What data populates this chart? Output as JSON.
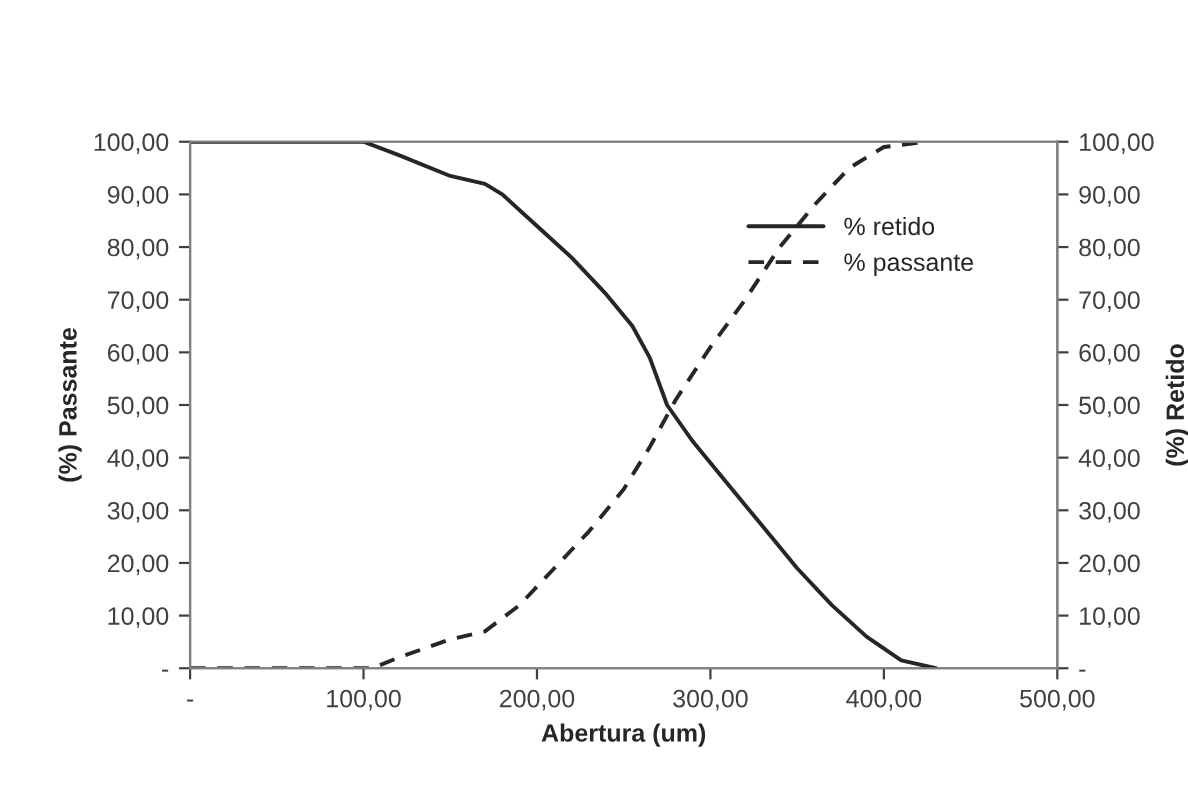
{
  "chart_data": {
    "type": "line",
    "xlabel": "Abertura (um)",
    "ylabel": "(%) Passante",
    "y2label": "(%) Retido",
    "xlim": [
      0,
      500
    ],
    "xticks": [
      {
        "value": 0,
        "label": "-"
      },
      {
        "value": 100,
        "label": "100,00"
      },
      {
        "value": 200,
        "label": "200,00"
      },
      {
        "value": 300,
        "label": "300,00"
      },
      {
        "value": 400,
        "label": "400,00"
      },
      {
        "value": 500,
        "label": "500,00"
      }
    ],
    "ylim": [
      0,
      100
    ],
    "yticks": [
      {
        "value": 0,
        "label": "-"
      },
      {
        "value": 10,
        "label": "10,00"
      },
      {
        "value": 20,
        "label": "20,00"
      },
      {
        "value": 30,
        "label": "30,00"
      },
      {
        "value": 40,
        "label": "40,00"
      },
      {
        "value": 50,
        "label": "50,00"
      },
      {
        "value": 60,
        "label": "60,00"
      },
      {
        "value": 70,
        "label": "70,00"
      },
      {
        "value": 80,
        "label": "80,00"
      },
      {
        "value": 90,
        "label": "90,00"
      },
      {
        "value": 100,
        "label": "100,00"
      }
    ],
    "y2lim": [
      0,
      100
    ],
    "y2ticks": [
      {
        "value": 0,
        "label": "-"
      },
      {
        "value": 10,
        "label": "10,00"
      },
      {
        "value": 20,
        "label": "20,00"
      },
      {
        "value": 30,
        "label": "30,00"
      },
      {
        "value": 40,
        "label": "40,00"
      },
      {
        "value": 50,
        "label": "50,00"
      },
      {
        "value": 60,
        "label": "60,00"
      },
      {
        "value": 70,
        "label": "70,00"
      },
      {
        "value": 80,
        "label": "80,00"
      },
      {
        "value": 90,
        "label": "90,00"
      },
      {
        "value": 100,
        "label": "100,00"
      }
    ],
    "grid": false,
    "legend": "top right",
    "marker": "none",
    "series": [
      {
        "name": "% retido",
        "color": "#262626",
        "line_style": "solid",
        "axis": "y2",
        "x": [
          0,
          100,
          120,
          150,
          170,
          180,
          200,
          220,
          240,
          255,
          265,
          275,
          290,
          310,
          330,
          350,
          370,
          390,
          410,
          430
        ],
        "values": [
          100,
          100,
          97.5,
          93.5,
          92,
          90,
          84,
          78,
          71,
          65,
          59,
          50,
          43,
          35,
          27,
          19,
          12,
          6,
          1.5,
          0
        ]
      },
      {
        "name": "% passante",
        "color": "#262626",
        "line_style": "dashed",
        "x": [
          0,
          105,
          120,
          150,
          170,
          190,
          210,
          230,
          250,
          265,
          280,
          300,
          320,
          340,
          360,
          380,
          400,
          425
        ],
        "values": [
          0,
          0,
          2,
          5.5,
          7,
          12,
          19,
          26,
          34,
          42,
          51,
          61,
          70,
          80,
          88,
          95,
          99,
          100
        ]
      }
    ]
  }
}
